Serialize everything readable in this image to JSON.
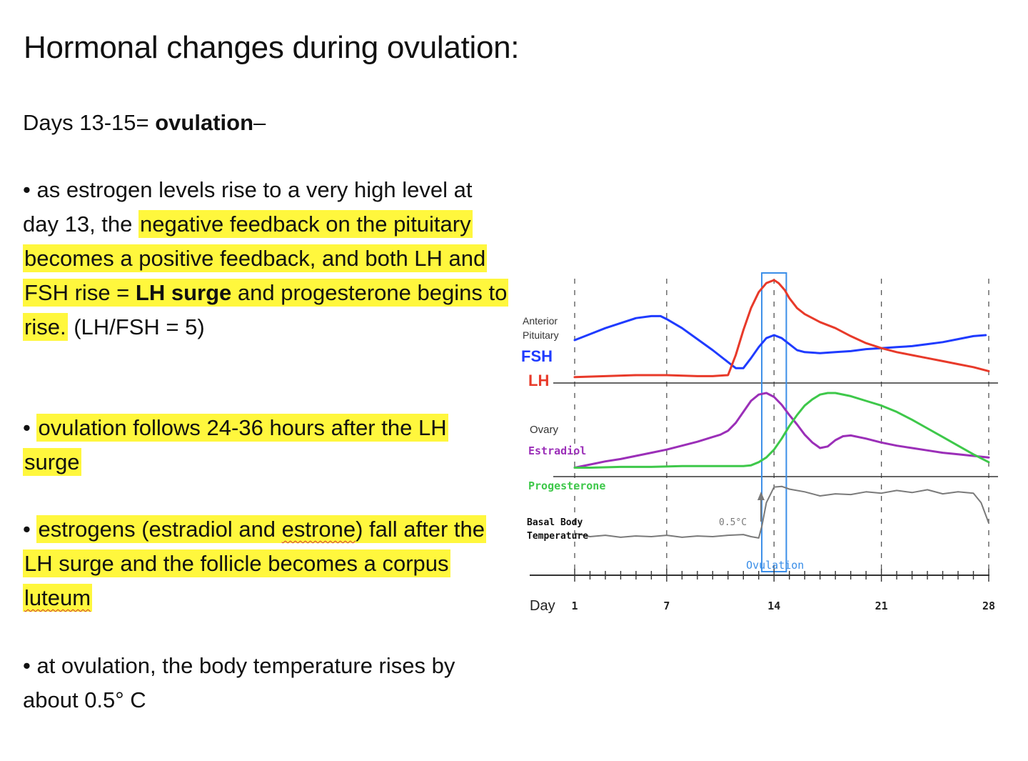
{
  "slide": {
    "title": "Hormonal changes during ovulation:",
    "days_lead": "Days 13-15= ",
    "days_bold": "ovulation",
    "days_tail": "–",
    "bullet1": {
      "p1": "• as estrogen levels rise to a very high level at day 13, the ",
      "h1": "negative feedback on the pituitary becomes a positive feedback, and both LH and FSH rise = ",
      "h1_bold": "LH surge",
      "h1_tail": " and progesterone  begins to rise.",
      "p2": " (LH/FSH  = 5)"
    },
    "bullet2": {
      "dot": "• ",
      "h": "ovulation follows 24-36 hours after the LH surge"
    },
    "bullet3": {
      "dot": "• ",
      "h_a": "estrogens (estradiol and ",
      "h_b": "estrone",
      "h_c": ")  fall after the LH surge and the follicle becomes a corpus ",
      "h_d": "luteum"
    },
    "bullet4": {
      "text": "• at ovulation, the body temperature rises by about 0.5° C"
    }
  },
  "chart_data": {
    "type": "line",
    "x_axis": {
      "label": "Day",
      "ticks": [
        "1",
        "7",
        "14",
        "21",
        "28"
      ],
      "range": [
        1,
        28
      ]
    },
    "panels": [
      {
        "label_lines": [
          "Anterior",
          "Pituitary"
        ],
        "series": [
          "FSH",
          "LH"
        ]
      },
      {
        "label_lines": [
          "Ovary"
        ],
        "series": [
          "Estradiol",
          "Progesterone"
        ]
      },
      {
        "label_lines": [
          "Basal Body",
          "Temperature"
        ],
        "series": [
          "Basal Body Temperature"
        ]
      }
    ],
    "series": [
      {
        "name": "FSH",
        "color": "#1f3bff",
        "x": [
          1,
          2,
          3,
          4,
          5,
          6,
          6.6,
          7,
          8,
          9,
          10,
          11,
          11.5,
          12,
          12.5,
          13,
          13.5,
          14,
          14.5,
          15,
          15.5,
          16,
          17,
          18,
          19,
          20,
          21,
          22,
          23,
          24,
          25,
          26,
          27,
          27.8
        ],
        "y": [
          0.4,
          0.46,
          0.52,
          0.57,
          0.62,
          0.64,
          0.64,
          0.61,
          0.52,
          0.41,
          0.3,
          0.18,
          0.12,
          0.12,
          0.22,
          0.33,
          0.42,
          0.45,
          0.42,
          0.36,
          0.3,
          0.28,
          0.27,
          0.28,
          0.29,
          0.31,
          0.32,
          0.33,
          0.34,
          0.36,
          0.38,
          0.41,
          0.44,
          0.45
        ]
      },
      {
        "name": "LH",
        "color": "#e83a2a",
        "x": [
          1,
          3,
          5,
          7,
          9,
          10,
          11,
          11.5,
          12,
          12.5,
          13,
          13.5,
          14,
          14.3,
          14.7,
          15,
          15.5,
          16,
          17,
          18,
          19,
          20,
          21,
          22,
          23,
          24,
          25,
          26,
          27,
          28
        ],
        "y": [
          0.03,
          0.04,
          0.05,
          0.05,
          0.04,
          0.04,
          0.05,
          0.25,
          0.5,
          0.72,
          0.88,
          0.97,
          1.0,
          0.97,
          0.9,
          0.82,
          0.72,
          0.66,
          0.58,
          0.52,
          0.44,
          0.37,
          0.32,
          0.28,
          0.25,
          0.22,
          0.19,
          0.16,
          0.13,
          0.09
        ]
      },
      {
        "name": "Estradiol",
        "color": "#9b2fb8",
        "x": [
          1,
          2,
          3,
          4,
          5,
          6,
          7,
          8,
          9,
          10,
          10.5,
          11,
          11.5,
          12,
          12.5,
          13,
          13.5,
          14,
          14.5,
          15,
          15.5,
          16,
          16.5,
          17,
          17.5,
          18,
          18.5,
          19,
          20,
          21,
          22,
          23,
          24,
          25,
          26,
          27,
          28
        ],
        "y": [
          0.05,
          0.09,
          0.13,
          0.16,
          0.2,
          0.24,
          0.28,
          0.33,
          0.38,
          0.44,
          0.47,
          0.52,
          0.62,
          0.76,
          0.9,
          0.98,
          1.0,
          0.95,
          0.85,
          0.72,
          0.6,
          0.47,
          0.37,
          0.3,
          0.32,
          0.4,
          0.45,
          0.46,
          0.42,
          0.37,
          0.33,
          0.3,
          0.27,
          0.24,
          0.22,
          0.2,
          0.18
        ]
      },
      {
        "name": "Progesterone",
        "color": "#3ec84a",
        "x": [
          1,
          2,
          4,
          6,
          8,
          10,
          11,
          12,
          12.5,
          13,
          13.5,
          14,
          14.5,
          15,
          15.5,
          16,
          16.5,
          17,
          17.5,
          18,
          19,
          20,
          21,
          22,
          23,
          24,
          25,
          26,
          27,
          28
        ],
        "y": [
          0.05,
          0.05,
          0.06,
          0.06,
          0.07,
          0.07,
          0.07,
          0.07,
          0.08,
          0.12,
          0.18,
          0.28,
          0.42,
          0.58,
          0.72,
          0.84,
          0.92,
          0.98,
          1.0,
          1.0,
          0.96,
          0.9,
          0.84,
          0.76,
          0.66,
          0.55,
          0.44,
          0.33,
          0.22,
          0.12
        ]
      },
      {
        "name": "Basal Body Temperature",
        "color": "#7a7a7a",
        "x": [
          1,
          2,
          3,
          4,
          5,
          6,
          7,
          8,
          9,
          10,
          11,
          12,
          12.5,
          13,
          13.2,
          13.5,
          14,
          14.5,
          15,
          16,
          17,
          18,
          19,
          20,
          21,
          22,
          23,
          24,
          25,
          26,
          27,
          27.5,
          28
        ],
        "y": [
          0.25,
          0.2,
          0.22,
          0.19,
          0.21,
          0.2,
          0.22,
          0.19,
          0.21,
          0.2,
          0.22,
          0.23,
          0.2,
          0.18,
          0.35,
          0.7,
          0.93,
          0.94,
          0.9,
          0.86,
          0.8,
          0.83,
          0.82,
          0.86,
          0.84,
          0.88,
          0.85,
          0.89,
          0.83,
          0.86,
          0.84,
          0.7,
          0.4
        ]
      }
    ],
    "annotations": [
      {
        "text": "0.5°C",
        "color": "#7a7a7a"
      },
      {
        "text": "Ovulation",
        "color": "#3a8ee8",
        "x_range": [
          13.2,
          14.8
        ]
      }
    ]
  }
}
